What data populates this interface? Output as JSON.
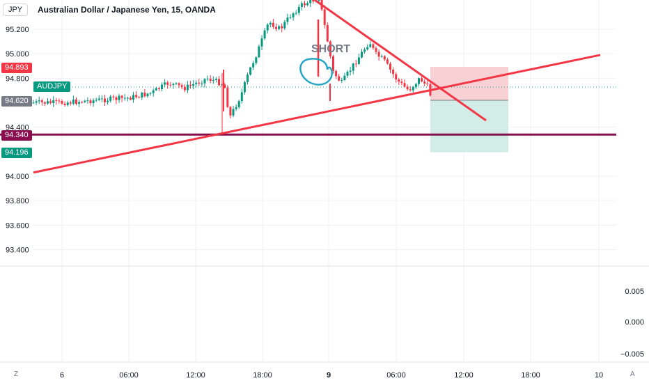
{
  "header": {
    "currency_badge": "JPY",
    "title": "Australian Dollar / Japanese Yen, 15, OANDA"
  },
  "price_tags": {
    "red_level": "94.893",
    "symbol": "AUDJPY",
    "current": "94.620",
    "purple_level": "94.340",
    "green_level": "94.196"
  },
  "annotation": {
    "text": "SHORT"
  },
  "corners": {
    "left": "Z",
    "right": "A"
  },
  "colors": {
    "up": "#089981",
    "down": "#f23645",
    "trendline": "#f23645",
    "support": "#880e4f",
    "stop_zone": "#f7c9cc",
    "target_zone": "#cdeae4",
    "circle": "#26a6c4",
    "grid": "#eef0f4"
  },
  "chart_data": {
    "type": "candlestick",
    "symbol": "AUDJPY",
    "timeframe": "15",
    "source": "OANDA",
    "y_ticks": [
      "95.200",
      "95.000",
      "94.800",
      "94.400",
      "94.000",
      "93.800",
      "93.600",
      "93.400"
    ],
    "x_ticks": [
      "6",
      "06:00",
      "12:00",
      "18:00",
      "9",
      "06:00",
      "12:00",
      "18:00",
      "10"
    ],
    "oscillator_ticks": [
      "0.005",
      "0.000",
      "−0.005"
    ],
    "levels": {
      "support_line": 94.34,
      "position_entry": 94.62,
      "stop_loss": 94.893,
      "take_profit": 94.196
    },
    "trendlines": [
      {
        "name": "ascending support",
        "from": [
          "6 00:00",
          94.03
        ],
        "to": [
          "10 00:00",
          94.99
        ]
      },
      {
        "name": "descending resistance",
        "from": [
          "8 23:00",
          95.48
        ],
        "to": [
          "9 12:30",
          94.45
        ]
      }
    ],
    "close_path": [
      [
        "6 00:00",
        94.6
      ],
      [
        "6 03:00",
        94.62
      ],
      [
        "6 06:00",
        94.64
      ],
      [
        "6 08:00",
        94.68
      ],
      [
        "6 09:30",
        94.76
      ],
      [
        "6 11:00",
        94.72
      ],
      [
        "6 13:00",
        94.8
      ],
      [
        "6 14:30",
        94.75
      ],
      [
        "6 15:00",
        94.48
      ],
      [
        "6 16:00",
        94.66
      ],
      [
        "6 16:45",
        94.86
      ],
      [
        "6 17:30",
        95.02
      ],
      [
        "6 18:30",
        95.26
      ],
      [
        "6 19:30",
        95.2
      ],
      [
        "6 20:30",
        95.32
      ],
      [
        "6 21:30",
        95.4
      ],
      [
        "6 23:00",
        95.46
      ],
      [
        "6 23:45",
        95.1
      ],
      [
        "9 00:15",
        94.85
      ],
      [
        "9 01:00",
        94.76
      ],
      [
        "9 02:00",
        94.9
      ],
      [
        "9 03:30",
        95.1
      ],
      [
        "9 04:00",
        95.0
      ],
      [
        "9 04:45",
        94.95
      ],
      [
        "9 05:15",
        94.88
      ],
      [
        "9 06:00",
        94.78
      ],
      [
        "9 07:00",
        94.7
      ],
      [
        "9 08:00",
        94.8
      ],
      [
        "9 08:40",
        94.73
      ],
      [
        "9 09:00",
        94.65
      ]
    ]
  }
}
